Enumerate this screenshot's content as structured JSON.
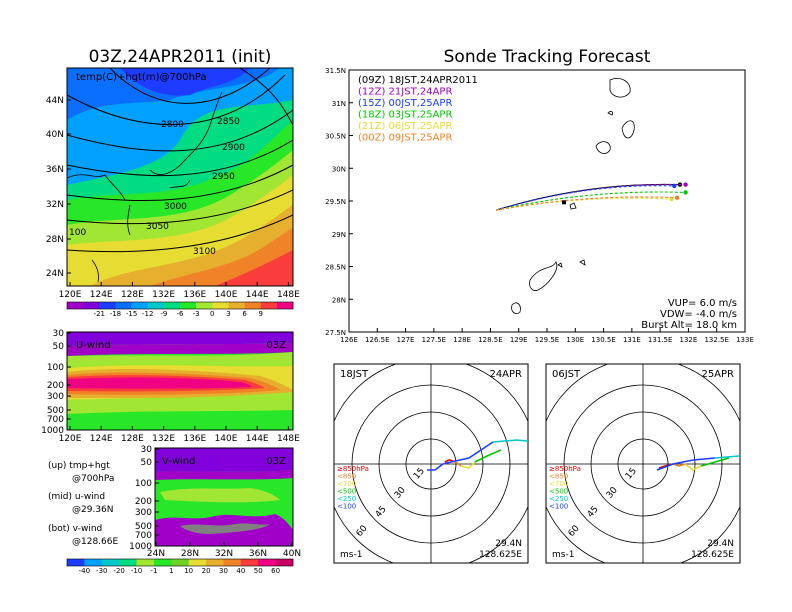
{
  "chart_data": [
    {
      "type": "heatmap",
      "title": "03Z,24APR2011 (init)",
      "subtitle": "temp(C)+hgt(m)@700hPa",
      "x_ticks": [
        "120E",
        "124E",
        "128E",
        "132E",
        "136E",
        "140E",
        "144E",
        "148E"
      ],
      "y_ticks": [
        "44N",
        "40N",
        "36N",
        "32N",
        "28N",
        "24N"
      ],
      "contour_labels": [
        "2800",
        "2850",
        "2900",
        "2950",
        "3000",
        "3050",
        "3100",
        "100"
      ],
      "colorbar_ticks": [
        "-21",
        "-18",
        "-15",
        "-12",
        "-9",
        "-6",
        "-3",
        "0",
        "3",
        "6",
        "9"
      ],
      "colorbar_colors": [
        "#a000c8",
        "#8200dc",
        "#1e3cff",
        "#0a6eff",
        "#00a0ff",
        "#00c8c8",
        "#00dc82",
        "#28e628",
        "#a0e632",
        "#e6dc32",
        "#e6af2d",
        "#f08228",
        "#fa3c3c",
        "#f00082"
      ]
    },
    {
      "type": "line",
      "title": "Sonde Tracking Forecast",
      "x_ticks": [
        "126E",
        "126.5E",
        "127E",
        "127.5E",
        "128E",
        "128.5E",
        "129E",
        "129.5E",
        "130E",
        "130.5E",
        "131E",
        "131.5E",
        "132E",
        "132.5E",
        "133E"
      ],
      "y_ticks": [
        "31.5N",
        "31N",
        "30.5N",
        "30N",
        "29.5N",
        "29N",
        "28.5N",
        "28N",
        "27.5N"
      ],
      "xlim": [
        126,
        133
      ],
      "ylim": [
        27.5,
        31.5
      ],
      "series": [
        {
          "name": "(09Z)  18JST,24APR2011",
          "color": "#000000",
          "end": [
            131.85,
            29.75
          ]
        },
        {
          "name": "(12Z)  21JST,24APR",
          "color": "#a000c8",
          "end": [
            131.95,
            29.75
          ]
        },
        {
          "name": "(15Z)  00JST,25APR",
          "color": "#1e3cff",
          "end": [
            131.75,
            29.73
          ]
        },
        {
          "name": "(18Z)  03JST,25APR",
          "color": "#00c800",
          "end": [
            131.95,
            29.63
          ]
        },
        {
          "name": "(21Z)  06JST,25APR",
          "color": "#e6dc32",
          "end": [
            131.7,
            29.53
          ]
        },
        {
          "name": "(00Z)  09JST,25APR",
          "color": "#f08228",
          "end": [
            131.8,
            29.55
          ]
        }
      ],
      "start": [
        128.6,
        29.36
      ],
      "info": [
        "VUP=  6.0  m/s",
        "VDW= -4.0  m/s",
        "Burst Alt=  18.0  km"
      ]
    },
    {
      "type": "heatmap",
      "title": "U-wind",
      "time": "03Z",
      "x_ticks": [
        "120E",
        "124E",
        "128E",
        "132E",
        "136E",
        "140E",
        "144E",
        "148E"
      ],
      "y_ticks": [
        "30",
        "50",
        "100",
        "200",
        "300",
        "500",
        "700",
        "1000"
      ]
    },
    {
      "type": "heatmap",
      "title": "V-wind",
      "time": "03Z",
      "x_ticks": [
        "24N",
        "28N",
        "32N",
        "36N",
        "40N"
      ],
      "y_ticks": [
        "30",
        "50",
        "100",
        "200",
        "300",
        "500",
        "700",
        "1000"
      ],
      "colorbar_ticks": [
        "-40",
        "-30",
        "-20",
        "-10",
        "-1",
        "1",
        "10",
        "20",
        "30",
        "40",
        "50",
        "60"
      ],
      "colorbar_colors": [
        "#1e3cff",
        "#00a0ff",
        "#00c8c8",
        "#00dc82",
        "#a0e632",
        "#28e628",
        "#6ed228",
        "#e6dc32",
        "#e6af2d",
        "#f08228",
        "#fa3c3c",
        "#f00082",
        "#c80064"
      ]
    },
    {
      "type": "line",
      "title": "18JST",
      "date": "24APR",
      "ring_labels": [
        "15",
        "30",
        "45",
        "60"
      ],
      "unit": "ms-1",
      "location": [
        "29.4N",
        "128.625E"
      ]
    },
    {
      "type": "line",
      "title": "06JST",
      "date": "25APR",
      "ring_labels": [
        "15",
        "30",
        "45",
        "60"
      ],
      "unit": "ms-1",
      "location": [
        "29.4N",
        "128.625E"
      ]
    }
  ],
  "legend_notes": [
    {
      "label": "(up) tmp+hgt",
      "sub": "@700hPa"
    },
    {
      "label": "(mid) u-wind",
      "sub": "@29.36N"
    },
    {
      "label": "(bot) v-wind",
      "sub": "@128.66E"
    }
  ],
  "hodo_legend": [
    {
      "label": "≥850hPa",
      "color": "#e60000"
    },
    {
      "label": "<850",
      "color": "#f08228"
    },
    {
      "label": "<700",
      "color": "#e6dc32"
    },
    {
      "label": "<500",
      "color": "#00c800"
    },
    {
      "label": "<250",
      "color": "#00c8c8"
    },
    {
      "label": "<100",
      "color": "#1e3cff"
    }
  ]
}
